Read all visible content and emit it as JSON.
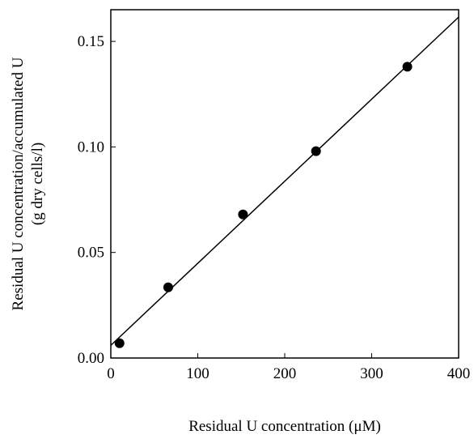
{
  "chart_data": {
    "type": "scatter",
    "title": "",
    "xlabel": "Residual U concentration (μM)",
    "ylabel_lines": [
      "Residual U concentration/accumulated U",
      "(g dry cells/l)"
    ],
    "xlim": [
      0,
      400
    ],
    "ylim": [
      0,
      0.165
    ],
    "xticks": [
      0,
      100,
      200,
      300,
      400
    ],
    "xtick_labels": [
      "0",
      "100",
      "200",
      "300",
      "400"
    ],
    "yticks": [
      0,
      0.05,
      0.1,
      0.15
    ],
    "ytick_labels": [
      "0.00",
      "0.05",
      "0.10",
      "0.15"
    ],
    "grid": false,
    "legend": "none",
    "points": [
      {
        "x": 10,
        "y": 0.007
      },
      {
        "x": 66,
        "y": 0.0335
      },
      {
        "x": 152,
        "y": 0.068
      },
      {
        "x": 236,
        "y": 0.098
      },
      {
        "x": 341,
        "y": 0.138
      }
    ],
    "fit_line": {
      "x": [
        0,
        400
      ],
      "y": [
        0.006,
        0.1615
      ]
    },
    "colors": {
      "marker": "#000000",
      "line": "#000000",
      "axis": "#000000"
    }
  }
}
